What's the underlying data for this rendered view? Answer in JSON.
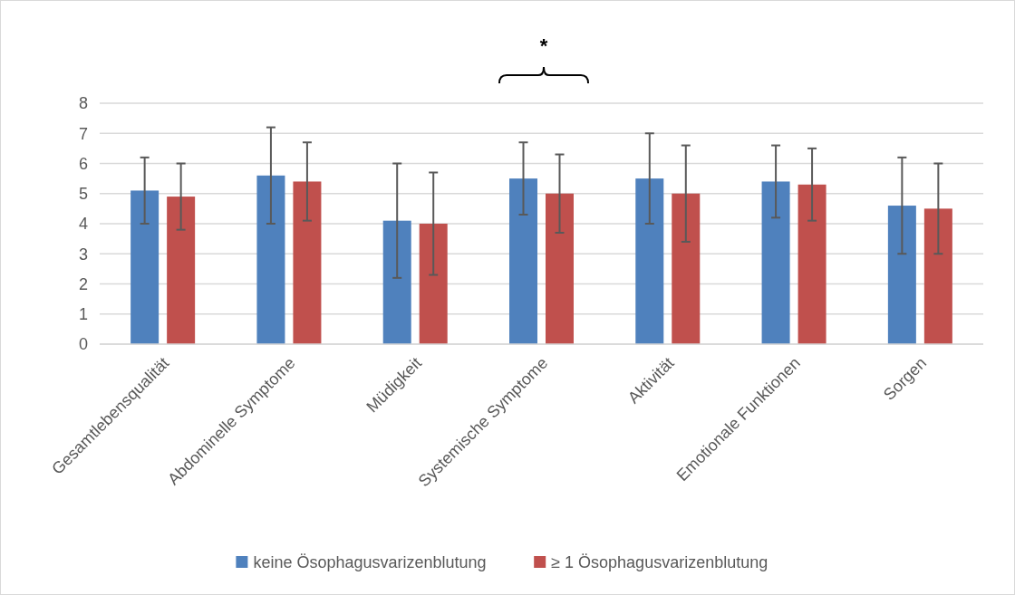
{
  "chart_data": {
    "type": "bar",
    "categories": [
      "Gesamtlebensqualität",
      "Abdominelle Symptome",
      "Müdigkeit",
      "Systemische Symptome",
      "Aktivität",
      "Emotionale Funktionen",
      "Sorgen"
    ],
    "series": [
      {
        "name": "keine Ösophagusvarizenblutung",
        "color": "#4f81bd",
        "values": [
          5.1,
          5.6,
          4.1,
          5.5,
          5.5,
          5.4,
          4.6
        ],
        "errors": [
          [
            4.0,
            6.2
          ],
          [
            4.0,
            7.2
          ],
          [
            2.2,
            6.0
          ],
          [
            4.3,
            6.7
          ],
          [
            4.0,
            7.0
          ],
          [
            4.2,
            6.6
          ],
          [
            3.0,
            6.2
          ]
        ]
      },
      {
        "name": "≥ 1 Ösophagusvarizenblutung",
        "color": "#c0504d",
        "values": [
          4.9,
          5.4,
          4.0,
          5.0,
          5.0,
          5.3,
          4.5
        ],
        "errors": [
          [
            3.8,
            6.0
          ],
          [
            4.1,
            6.7
          ],
          [
            2.3,
            5.7
          ],
          [
            3.7,
            6.3
          ],
          [
            3.4,
            6.6
          ],
          [
            4.1,
            6.5
          ],
          [
            3.0,
            6.0
          ]
        ]
      }
    ],
    "ylim": [
      0,
      8
    ],
    "yticks": [
      0,
      1,
      2,
      3,
      4,
      5,
      6,
      7,
      8
    ],
    "grid": "y",
    "legend": "bottom",
    "annotations": [
      "*"
    ]
  }
}
